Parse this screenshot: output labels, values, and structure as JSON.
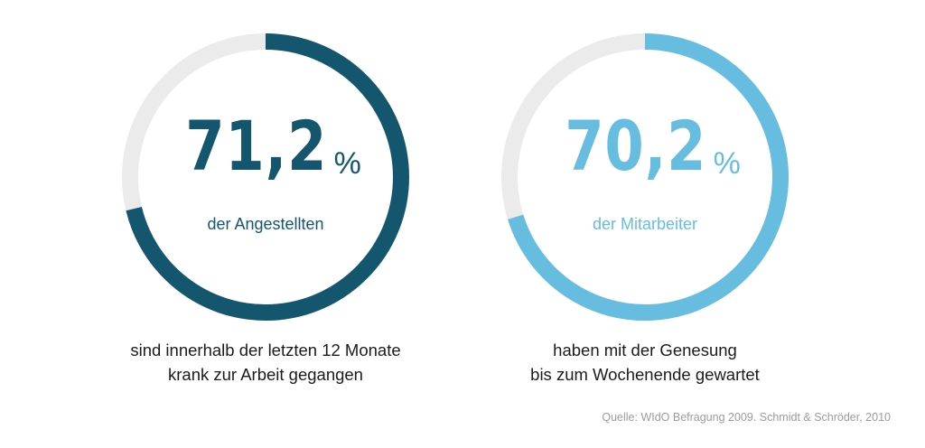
{
  "chart_data": [
    {
      "type": "pie",
      "value": 71.2,
      "max": 100,
      "value_text": "71,2",
      "unit": "%",
      "label": "der Angestellten",
      "caption": [
        "sind innerhalb der letzten 12 Monate",
        "krank zur Arbeit gegangen"
      ],
      "color": "#15566f",
      "track_color": "#ebebeb"
    },
    {
      "type": "pie",
      "value": 70.2,
      "max": 100,
      "value_text": "70,2",
      "unit": "%",
      "label": "der Mitarbeiter",
      "caption": [
        "haben mit der Genesung",
        "bis zum Wochenende gewartet"
      ],
      "color": "#66bde0",
      "track_color": "#ebebeb"
    }
  ],
  "source": "Quelle: WIdO Befragung 2009. Schmidt & Schröder, 2010"
}
